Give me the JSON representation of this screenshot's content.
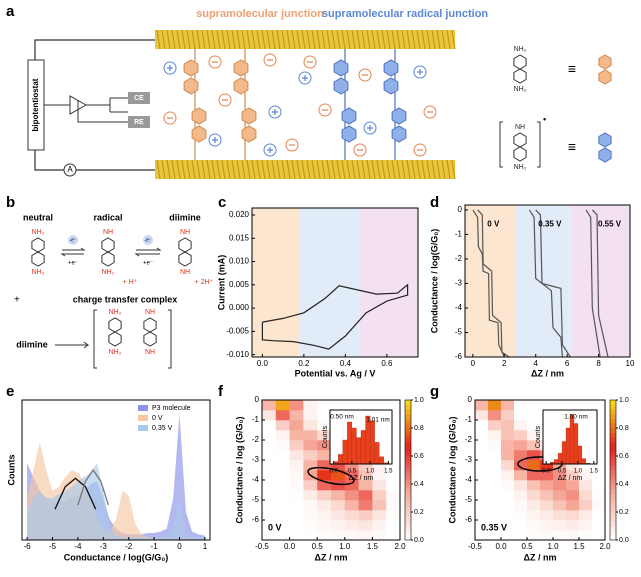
{
  "panel_labels": {
    "a": "a",
    "b": "b",
    "c": "c",
    "d": "d",
    "e": "e",
    "f": "f",
    "g": "g"
  },
  "panel_a": {
    "title_left": "supramolecular junction",
    "title_right": "supramolecular radical junction",
    "instrument": "bipotentiostat",
    "ce": "CE",
    "re": "RE",
    "ammeter": "A"
  },
  "chem": {
    "nh2": "NH₂",
    "nh": "NH",
    "equiv": "≡",
    "radical_dot": "•"
  },
  "panel_b": {
    "neutral": "neutral",
    "radical": "radical",
    "diimine": "diimine",
    "oxidation": "-e⁻",
    "reduction": "+e⁻",
    "proton": "+ H⁺",
    "two_protons": "+ 2H⁺",
    "plus": "+",
    "complex": "charge transfer complex",
    "reagent": "diimine"
  },
  "chart_data": [
    {
      "type": "line",
      "xlabel": "Potential vs. Ag / V",
      "ylabel": "Current (mA)",
      "xlim": [
        -0.05,
        0.75
      ],
      "xticks": [
        {
          "value": 0,
          "label": "0.0"
        },
        {
          "value": 0.2,
          "label": "0.2"
        },
        {
          "value": 0.4,
          "label": "0.4"
        },
        {
          "value": 0.6,
          "label": "0.6"
        }
      ],
      "ylim": [
        -0.0105,
        0.0215
      ],
      "yticks": [
        {
          "value": -0.01,
          "label": "-0.010"
        },
        {
          "value": -0.005,
          "label": "-0.005"
        },
        {
          "value": 0,
          "label": "0.000"
        },
        {
          "value": 0.005,
          "label": "0.005"
        },
        {
          "value": 0.01,
          "label": "0.010"
        },
        {
          "value": 0.015,
          "label": "0.015"
        },
        {
          "value": 0.02,
          "label": "0.020"
        }
      ],
      "bands": [
        {
          "from": -0.05,
          "to": 0.18,
          "color": "#fde6cf"
        },
        {
          "from": 0.18,
          "to": 0.47,
          "color": "#e2ebf8"
        },
        {
          "from": 0.47,
          "to": 0.75,
          "color": "#f3e1f2"
        }
      ],
      "series": [
        {
          "color": "#222222",
          "x": [
            0.0,
            0.1,
            0.2,
            0.3,
            0.37,
            0.45,
            0.55,
            0.65,
            0.7,
            0.7,
            0.6,
            0.5,
            0.4,
            0.32,
            0.25,
            0.15,
            0.05,
            0.0,
            0.0
          ],
          "values": [
            -0.003,
            -0.0022,
            -0.001,
            0.002,
            0.0048,
            0.004,
            0.003,
            0.0032,
            0.005,
            0.0028,
            0.0015,
            -0.001,
            -0.006,
            -0.0088,
            -0.008,
            -0.0072,
            -0.007,
            -0.0068,
            -0.003
          ]
        }
      ]
    },
    {
      "type": "line",
      "xlabel": "ΔZ / nm",
      "ylabel": "Conductance / log(G/G₀)",
      "xlim": [
        -0.5,
        10
      ],
      "xticks": [
        0,
        2,
        4,
        6,
        8,
        10
      ],
      "ylim": [
        -6,
        0.2
      ],
      "yticks": [
        -6,
        -5,
        -4,
        -3,
        -2,
        -1,
        0
      ],
      "bands": [
        {
          "from": -0.5,
          "to": 2.7,
          "color": "#fde6cf"
        },
        {
          "from": 2.7,
          "to": 6.3,
          "color": "#e2ebf8"
        },
        {
          "from": 6.3,
          "to": 10,
          "color": "#f3e1f2"
        }
      ],
      "annotations": [
        {
          "text": "0 V",
          "x": 1.3,
          "y": -0.6
        },
        {
          "text": "0.35 V",
          "x": 4.9,
          "y": -0.6
        },
        {
          "text": "0.55 V",
          "x": 8.7,
          "y": -0.6
        }
      ],
      "series": [
        {
          "color": "#555555",
          "x": [
            0,
            0.3,
            0.35,
            0.6,
            0.65,
            1.0,
            1.05,
            1.6,
            1.65,
            2.0
          ],
          "values": [
            0,
            -0.3,
            -1.5,
            -1.8,
            -2.5,
            -2.6,
            -4.5,
            -4.6,
            -5.5,
            -6
          ]
        },
        {
          "color": "#555555",
          "x": [
            0.3,
            0.6,
            0.65,
            1.2,
            1.25,
            1.8,
            1.85,
            2.3
          ],
          "values": [
            0,
            -0.2,
            -2.2,
            -2.5,
            -4.3,
            -4.6,
            -5.8,
            -6
          ]
        },
        {
          "color": "#555555",
          "x": [
            3.6,
            3.9,
            4.0,
            5.0,
            5.1,
            5.6,
            5.7
          ],
          "values": [
            0,
            -0.3,
            -2.8,
            -3.3,
            -4.8,
            -5.2,
            -6
          ]
        },
        {
          "color": "#555555",
          "x": [
            4.0,
            4.3,
            4.4,
            5.6,
            5.7,
            6.2
          ],
          "values": [
            0,
            -0.2,
            -3.0,
            -3.2,
            -5.5,
            -6
          ]
        },
        {
          "color": "#555555",
          "x": [
            7.2,
            7.5,
            7.6,
            8.1
          ],
          "values": [
            0,
            -0.3,
            -4.0,
            -6
          ]
        },
        {
          "color": "#555555",
          "x": [
            7.6,
            7.9,
            8.0,
            8.6
          ],
          "values": [
            0,
            -0.2,
            -4.3,
            -6
          ]
        }
      ]
    },
    {
      "type": "area",
      "xlabel": "Conductance / log(G/G₀)",
      "ylabel": "Counts",
      "legend": "upper right",
      "xlim": [
        -6.2,
        1.2
      ],
      "xticks": [
        -6,
        -5,
        -4,
        -3,
        -2,
        -1,
        0,
        1
      ],
      "ylim": [
        0,
        1
      ],
      "x": [
        -6,
        -5.75,
        -5.5,
        -5.25,
        -5,
        -4.75,
        -4.5,
        -4.25,
        -4,
        -3.75,
        -3.5,
        -3.25,
        -3,
        -2.75,
        -2.5,
        -2.25,
        -2,
        -1.75,
        -1.5,
        -1.25,
        -1,
        -0.75,
        -0.5,
        -0.25,
        0,
        0.25,
        0.5,
        0.75,
        1
      ],
      "series": [
        {
          "name": "P3 molecule",
          "color": "#8c92ea",
          "values": [
            0.55,
            0.45,
            0.35,
            0.3,
            0.28,
            0.27,
            0.28,
            0.3,
            0.32,
            0.35,
            0.4,
            0.42,
            0.3,
            0.15,
            0.08,
            0.05,
            0.04,
            0.04,
            0.04,
            0.05,
            0.05,
            0.06,
            0.08,
            0.3,
            0.9,
            0.2,
            0.06,
            0.04,
            0.03
          ]
        },
        {
          "name": "0 V",
          "color": "#f6c7a3",
          "values": [
            0.3,
            0.5,
            0.7,
            0.5,
            0.35,
            0.38,
            0.45,
            0.5,
            0.48,
            0.42,
            0.3,
            0.15,
            0.08,
            0.06,
            0.15,
            0.35,
            0.32,
            0.12,
            0.04,
            0.02,
            0.01,
            0.01,
            0.01,
            0.01,
            0.02,
            0.01,
            0.01,
            0.01,
            0.01
          ]
        },
        {
          "name": "0.35 V",
          "color": "#a9c9e8",
          "values": [
            0.2,
            0.3,
            0.35,
            0.3,
            0.3,
            0.33,
            0.35,
            0.38,
            0.42,
            0.45,
            0.48,
            0.55,
            0.35,
            0.1,
            0.03,
            0.02,
            0.02,
            0.02,
            0.02,
            0.02,
            0.02,
            0.02,
            0.03,
            0.1,
            0.3,
            0.05,
            0.02,
            0.02,
            0.02
          ]
        }
      ],
      "fits": [
        {
          "color": "#111111",
          "x": [
            -4.9,
            -4.5,
            -4.1,
            -3.7,
            -3.3
          ],
          "values": [
            0.22,
            0.38,
            0.44,
            0.38,
            0.22
          ]
        },
        {
          "color": "#777777",
          "x": [
            -4.0,
            -3.7,
            -3.4,
            -3.1,
            -2.8
          ],
          "values": [
            0.25,
            0.42,
            0.5,
            0.42,
            0.25
          ]
        }
      ]
    },
    {
      "type": "heatmap",
      "xlabel": "ΔZ / nm",
      "ylabel": "Conductance / log (G/G₀)",
      "label": "0 V",
      "xlim": [
        -0.5,
        2.0
      ],
      "xticks": [
        {
          "value": -0.5,
          "label": "-0.5"
        },
        {
          "value": 0,
          "label": "0.0"
        },
        {
          "value": 0.5,
          "label": "0.5"
        },
        {
          "value": 1,
          "label": "1.0"
        },
        {
          "value": 1.5,
          "label": "1.5"
        },
        {
          "value": 2,
          "label": "2.0"
        }
      ],
      "ylim": [
        -7,
        0
      ],
      "yticks": [
        -6,
        -5,
        -4,
        -3,
        -2,
        -1,
        0
      ],
      "clim": [
        0,
        1
      ],
      "cticks": [
        {
          "value": 0,
          "label": "0.0"
        },
        {
          "value": 0.2,
          "label": "0.2"
        },
        {
          "value": 0.4,
          "label": "0.4"
        },
        {
          "value": 0.6,
          "label": "0.6"
        },
        {
          "value": 0.8,
          "label": "0.8"
        },
        {
          "value": 1,
          "label": "1.0"
        }
      ],
      "colorscale": [
        "#ffffff",
        "#f6ad9c",
        "#e3201c",
        "#f7e11a"
      ],
      "xbins": [
        -0.5,
        -0.25,
        0,
        0.25,
        0.5,
        0.75,
        1,
        1.25,
        1.5,
        1.75,
        2
      ],
      "ybins": [
        -7,
        -6.5,
        -6,
        -5.5,
        -5,
        -4.5,
        -4,
        -3.5,
        -3,
        -2.5,
        -2,
        -1.5,
        -1,
        -0.5,
        0
      ],
      "values": [
        [
          0,
          0,
          0,
          0,
          0.01,
          0.02,
          0.03,
          0.04,
          0.02,
          0
        ],
        [
          0,
          0,
          0,
          0.01,
          0.03,
          0.05,
          0.08,
          0.1,
          0.05,
          0
        ],
        [
          0,
          0,
          0,
          0.02,
          0.05,
          0.1,
          0.15,
          0.2,
          0.1,
          0.01
        ],
        [
          0,
          0,
          0,
          0.03,
          0.08,
          0.15,
          0.3,
          0.45,
          0.25,
          0.02
        ],
        [
          0,
          0,
          0.01,
          0.08,
          0.2,
          0.3,
          0.4,
          0.5,
          0.2,
          0.02
        ],
        [
          0,
          0,
          0.02,
          0.2,
          0.5,
          0.55,
          0.5,
          0.3,
          0.1,
          0
        ],
        [
          0,
          0,
          0.03,
          0.35,
          0.7,
          0.75,
          0.5,
          0.25,
          0.05,
          0
        ],
        [
          0,
          0,
          0.05,
          0.3,
          0.5,
          0.55,
          0.4,
          0.2,
          0.05,
          0
        ],
        [
          0,
          0,
          0.1,
          0.2,
          0.3,
          0.35,
          0.4,
          0.25,
          0.05,
          0
        ],
        [
          0,
          0.02,
          0.2,
          0.35,
          0.4,
          0.35,
          0.2,
          0.05,
          0,
          0
        ],
        [
          0,
          0.05,
          0.3,
          0.3,
          0.15,
          0.05,
          0,
          0,
          0,
          0
        ],
        [
          0,
          0.2,
          0.35,
          0.1,
          0.02,
          0,
          0,
          0,
          0,
          0
        ],
        [
          0.1,
          0.5,
          0.3,
          0.05,
          0,
          0,
          0,
          0,
          0,
          0
        ],
        [
          0.3,
          0.9,
          0.4,
          0.05,
          0,
          0,
          0,
          0,
          0,
          0
        ]
      ],
      "inset": {
        "xlabel": "ΔZ / nm",
        "ylabel": "Counts",
        "color": "#e8401c",
        "labels": [
          "0.50 nm",
          "1.01 nm"
        ],
        "xlim": [
          -0.1,
          1.6
        ],
        "ylim": [
          0,
          45
        ],
        "xticks": [
          {
            "value": 0,
            "label": "0.0"
          },
          {
            "value": 0.5,
            "label": "0.5"
          },
          {
            "value": 1,
            "label": "1.0"
          },
          {
            "value": 1.5,
            "label": "1.5"
          }
        ],
        "bins": [
          0,
          0.125,
          0.25,
          0.375,
          0.5,
          0.625,
          0.75,
          0.875,
          1,
          1.125,
          1.25,
          1.375,
          1.5
        ],
        "counts": [
          2,
          8,
          20,
          35,
          30,
          22,
          28,
          40,
          36,
          18,
          6,
          1
        ]
      }
    },
    {
      "type": "heatmap",
      "xlabel": "ΔZ / nm",
      "ylabel": "Conductance / log (G/G₀)",
      "label": "0.35 V",
      "xlim": [
        -0.5,
        2.0
      ],
      "xticks": [
        {
          "value": -0.5,
          "label": "-0.5"
        },
        {
          "value": 0,
          "label": "0.0"
        },
        {
          "value": 0.5,
          "label": "0.5"
        },
        {
          "value": 1,
          "label": "1.0"
        },
        {
          "value": 1.5,
          "label": "1.5"
        },
        {
          "value": 2,
          "label": "2.0"
        }
      ],
      "ylim": [
        -7,
        0
      ],
      "yticks": [
        -6,
        -5,
        -4,
        -3,
        -2,
        -1,
        0
      ],
      "clim": [
        0,
        1
      ],
      "cticks": [
        {
          "value": 0,
          "label": "0.0"
        },
        {
          "value": 0.2,
          "label": "0.2"
        },
        {
          "value": 0.4,
          "label": "0.4"
        },
        {
          "value": 0.6,
          "label": "0.6"
        },
        {
          "value": 0.8,
          "label": "0.8"
        },
        {
          "value": 1,
          "label": "1.0"
        }
      ],
      "colorscale": [
        "#ffffff",
        "#f6ad9c",
        "#e3201c",
        "#f7e11a"
      ],
      "xbins": [
        -0.5,
        -0.25,
        0,
        0.25,
        0.5,
        0.75,
        1,
        1.25,
        1.5,
        1.75,
        2
      ],
      "ybins": [
        -7,
        -6.5,
        -6,
        -5.5,
        -5,
        -4.5,
        -4,
        -3.5,
        -3,
        -2.5,
        -2,
        -1.5,
        -1,
        -0.5,
        0
      ],
      "values": [
        [
          0,
          0,
          0,
          0,
          0.01,
          0.02,
          0.02,
          0.03,
          0.01,
          0
        ],
        [
          0,
          0,
          0,
          0,
          0.02,
          0.04,
          0.06,
          0.08,
          0.04,
          0
        ],
        [
          0,
          0,
          0,
          0.01,
          0.04,
          0.08,
          0.12,
          0.15,
          0.08,
          0
        ],
        [
          0,
          0,
          0,
          0.02,
          0.08,
          0.15,
          0.25,
          0.35,
          0.2,
          0.02
        ],
        [
          0,
          0,
          0,
          0.05,
          0.15,
          0.25,
          0.35,
          0.4,
          0.15,
          0.01
        ],
        [
          0,
          0,
          0.02,
          0.1,
          0.25,
          0.35,
          0.4,
          0.35,
          0.1,
          0
        ],
        [
          0,
          0,
          0.05,
          0.3,
          0.5,
          0.5,
          0.4,
          0.2,
          0.05,
          0
        ],
        [
          0,
          0,
          0.15,
          0.5,
          0.8,
          0.7,
          0.35,
          0.1,
          0,
          0
        ],
        [
          0,
          0,
          0.3,
          0.45,
          0.55,
          0.45,
          0.2,
          0.05,
          0,
          0
        ],
        [
          0,
          0.02,
          0.3,
          0.35,
          0.25,
          0.1,
          0.02,
          0,
          0,
          0
        ],
        [
          0,
          0.05,
          0.25,
          0.2,
          0.05,
          0,
          0,
          0,
          0,
          0
        ],
        [
          0,
          0.2,
          0.25,
          0.05,
          0,
          0,
          0,
          0,
          0,
          0
        ],
        [
          0.1,
          0.4,
          0.2,
          0,
          0,
          0,
          0,
          0,
          0,
          0
        ],
        [
          0.3,
          0.85,
          0.3,
          0,
          0,
          0,
          0,
          0,
          0,
          0
        ]
      ],
      "inset": {
        "xlabel": "ΔZ / nm",
        "ylabel": "Counts",
        "color": "#e8401c",
        "labels": [
          "1.00 nm"
        ],
        "xlim": [
          -0.1,
          1.6
        ],
        "ylim": [
          0,
          60
        ],
        "xticks": [
          {
            "value": 0,
            "label": "0.0"
          },
          {
            "value": 0.5,
            "label": "0.5"
          },
          {
            "value": 1,
            "label": "1.0"
          },
          {
            "value": 1.5,
            "label": "1.5"
          }
        ],
        "bins": [
          0,
          0.125,
          0.25,
          0.375,
          0.5,
          0.625,
          0.75,
          0.875,
          1,
          1.125,
          1.25,
          1.375,
          1.5
        ],
        "counts": [
          0,
          2,
          5,
          12,
          25,
          40,
          55,
          45,
          20,
          6,
          1,
          0
        ]
      }
    }
  ]
}
